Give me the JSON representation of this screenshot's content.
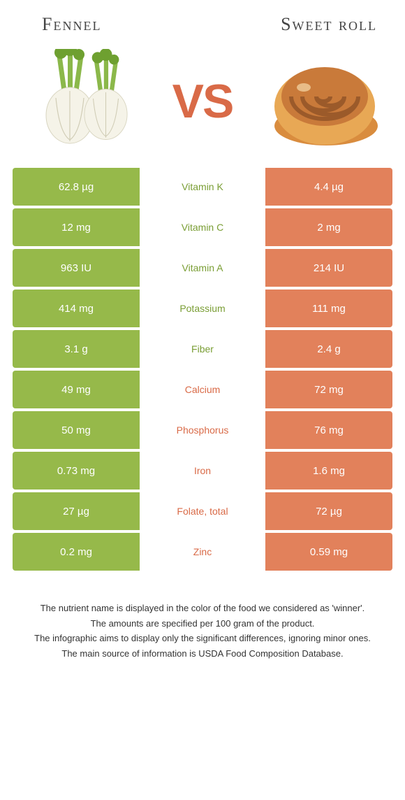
{
  "header": {
    "left_title": "Fennel",
    "right_title": "Sweet roll",
    "vs_label": "VS"
  },
  "colors": {
    "left_bg": "#96b94a",
    "right_bg": "#e2815b",
    "mid_left_text": "#7a9e35",
    "mid_right_text": "#d96a47",
    "mid_bg": "#ffffff"
  },
  "rows": [
    {
      "left": "62.8 µg",
      "label": "Vitamin K",
      "right": "4.4 µg",
      "winner": "left"
    },
    {
      "left": "12 mg",
      "label": "Vitamin C",
      "right": "2 mg",
      "winner": "left"
    },
    {
      "left": "963 IU",
      "label": "Vitamin A",
      "right": "214 IU",
      "winner": "left"
    },
    {
      "left": "414 mg",
      "label": "Potassium",
      "right": "111 mg",
      "winner": "left"
    },
    {
      "left": "3.1 g",
      "label": "Fiber",
      "right": "2.4 g",
      "winner": "left"
    },
    {
      "left": "49 mg",
      "label": "Calcium",
      "right": "72 mg",
      "winner": "right"
    },
    {
      "left": "50 mg",
      "label": "Phosphorus",
      "right": "76 mg",
      "winner": "right"
    },
    {
      "left": "0.73 mg",
      "label": "Iron",
      "right": "1.6 mg",
      "winner": "right"
    },
    {
      "left": "27 µg",
      "label": "Folate, total",
      "right": "72 µg",
      "winner": "right"
    },
    {
      "left": "0.2 mg",
      "label": "Zinc",
      "right": "0.59 mg",
      "winner": "right"
    }
  ],
  "footnote": {
    "line1": "The nutrient name is displayed in the color of the food we considered as 'winner'.",
    "line2": "The amounts are specified per 100 gram of the product.",
    "line3": "The infographic aims to display only the significant differences, ignoring minor ones.",
    "line4": "The main source of information is USDA Food Composition Database."
  }
}
